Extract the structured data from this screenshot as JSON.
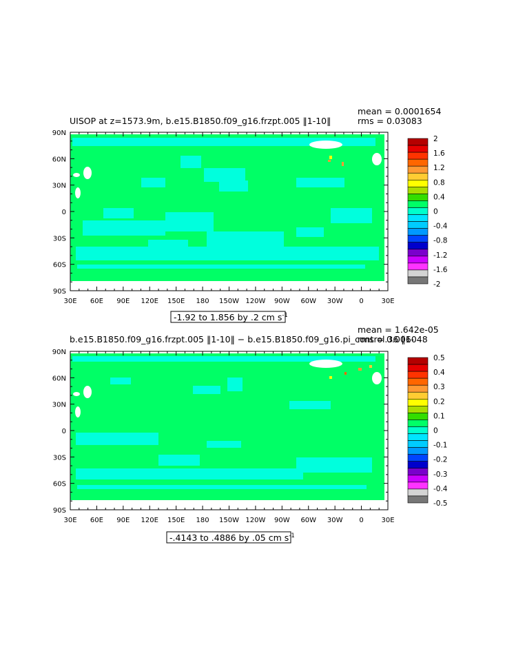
{
  "chart_data": [
    {
      "type": "heatmap",
      "title": "UISOP at z=1573.9m, b.e15.B1850.f09_g16.frzpt.005 ‖1-10‖",
      "mean_label": "mean = 0.0001654",
      "rms_label": "rms = 0.03083",
      "range_note": "-1.92 to 1.856 by .2 cm s",
      "range_note_exp": "-1",
      "x_ticks": [
        "30E",
        "60E",
        "90E",
        "120E",
        "150E",
        "180",
        "150W",
        "120W",
        "90W",
        "60W",
        "30W",
        "0",
        "30E"
      ],
      "y_ticks": [
        "90N",
        "60N",
        "30N",
        "0",
        "30S",
        "60S",
        "90S"
      ],
      "xlim_deg": [
        30,
        390
      ],
      "ylim_deg": [
        -90,
        90
      ],
      "colorbar": {
        "labels": [
          "2",
          "1.6",
          "1.2",
          "0.8",
          "0.4",
          "0",
          "-0.4",
          "-0.8",
          "-1.2",
          "-1.6",
          "-2"
        ],
        "colors": [
          "#b50000",
          "#e60000",
          "#ff3300",
          "#ff6600",
          "#ff9933",
          "#ffcc33",
          "#ffff00",
          "#aadd00",
          "#33dd00",
          "#00ff66",
          "#00ffcc",
          "#00e5ff",
          "#00ccff",
          "#0099ff",
          "#0044ff",
          "#0000cc",
          "#7a00cc",
          "#cc00ff",
          "#ff33ff",
          "#d4d4d4",
          "#777777"
        ],
        "dominant_color": "#00ff66",
        "secondary_color": "#00ffdd"
      }
    },
    {
      "type": "heatmap",
      "title": "b.e15.B1850.f09_g16.frzpt.005 ‖1-10‖ − b.e15.B1850.f09_g16.pi_control.36 ‖1-",
      "mean_label": "mean = 1.642e-05",
      "rms_label": "rms = 0.006048",
      "range_note": "-.4143 to .4886 by .05 cm s",
      "range_note_exp": "-1",
      "x_ticks": [
        "30E",
        "60E",
        "90E",
        "120E",
        "150E",
        "180",
        "150W",
        "120W",
        "90W",
        "60W",
        "30W",
        "0",
        "30E"
      ],
      "y_ticks": [
        "90N",
        "60N",
        "30N",
        "0",
        "30S",
        "60S",
        "90S"
      ],
      "xlim_deg": [
        30,
        390
      ],
      "ylim_deg": [
        -90,
        90
      ],
      "colorbar": {
        "labels": [
          "0.5",
          "0.4",
          "0.3",
          "0.2",
          "0.1",
          "0",
          "-0.1",
          "-0.2",
          "-0.3",
          "-0.4",
          "-0.5"
        ],
        "colors": [
          "#b50000",
          "#e60000",
          "#ff3300",
          "#ff6600",
          "#ff9933",
          "#ffcc33",
          "#ffff00",
          "#aadd00",
          "#33dd00",
          "#00ff66",
          "#00ffcc",
          "#00e5ff",
          "#00ccff",
          "#0099ff",
          "#0044ff",
          "#0000cc",
          "#7a00cc",
          "#cc00ff",
          "#ff33ff",
          "#d4d4d4",
          "#777777"
        ],
        "dominant_color": "#00ff66",
        "secondary_color": "#00ffdd"
      }
    }
  ]
}
